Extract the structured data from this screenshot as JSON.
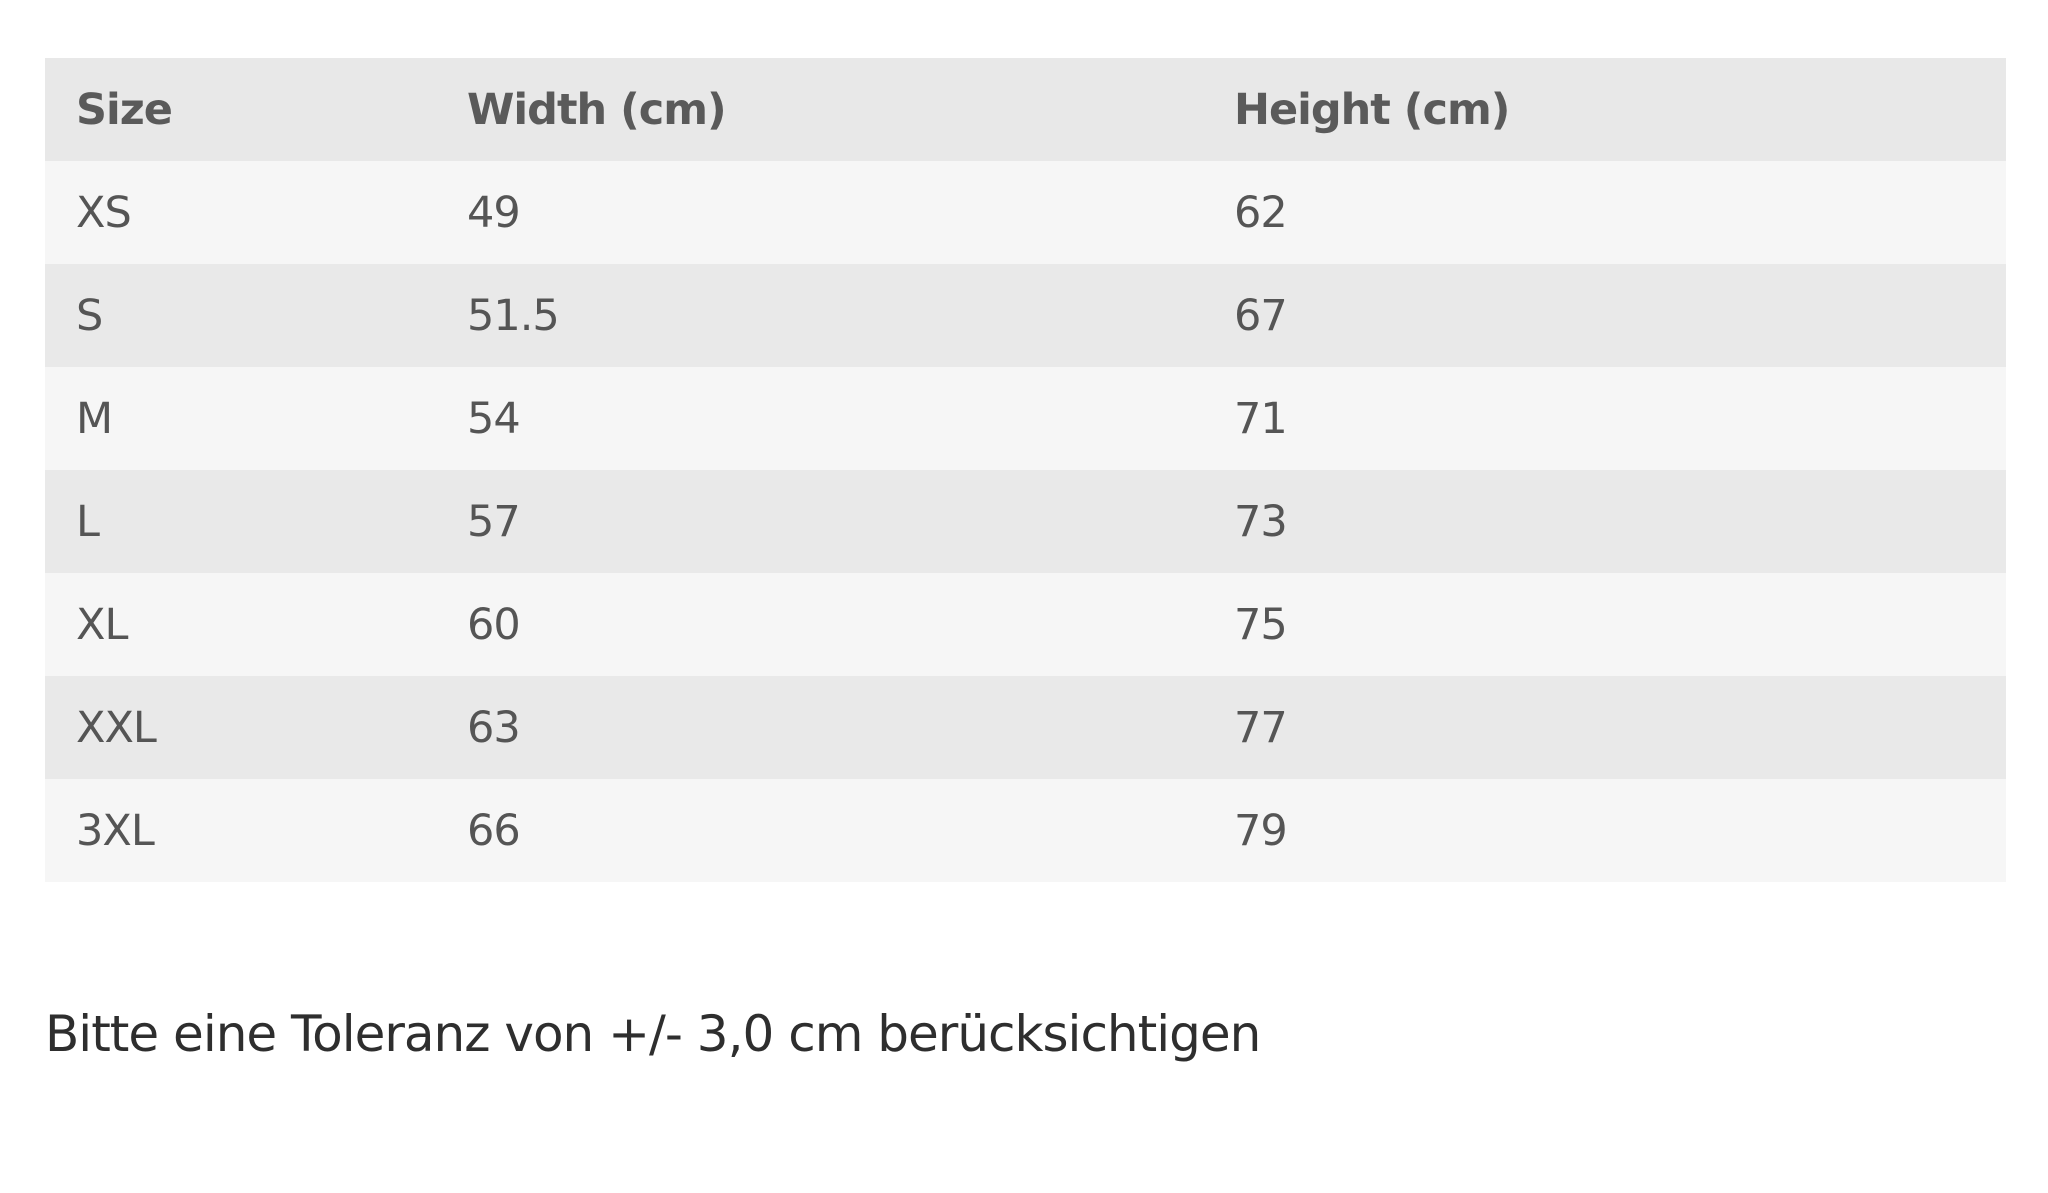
{
  "table": {
    "headers": [
      "Size",
      "Width (cm)",
      "Height (cm)"
    ],
    "rows": [
      [
        "XS",
        "49",
        "62"
      ],
      [
        "S",
        "51.5",
        "67"
      ],
      [
        "M",
        "54",
        "71"
      ],
      [
        "L",
        "57",
        "73"
      ],
      [
        "XL",
        "60",
        "75"
      ],
      [
        "XXL",
        "63",
        "77"
      ],
      [
        "3XL",
        "66",
        "79"
      ]
    ]
  },
  "note": "Bitte eine Toleranz von +/- 3,0 cm berücksichtigen"
}
